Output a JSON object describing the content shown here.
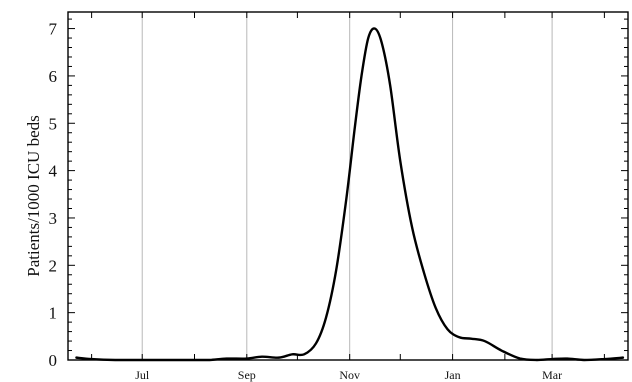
{
  "chart_data": {
    "type": "line",
    "title": "",
    "xlabel": "",
    "ylabel": "Patients/1000 ICU beds",
    "ylim": [
      0,
      7.35
    ],
    "xlim": [
      "2020-05-18",
      "2021-04-15"
    ],
    "yticks": [
      0,
      1,
      2,
      3,
      4,
      5,
      6,
      7
    ],
    "xticks": [
      {
        "label": "Jul",
        "date": "2020-07-01"
      },
      {
        "label": "Sep",
        "date": "2020-09-01"
      },
      {
        "label": "Nov",
        "date": "2020-11-01"
      },
      {
        "label": "Jan",
        "date": "2021-01-01"
      },
      {
        "label": "Mar",
        "date": "2021-03-01"
      }
    ],
    "grid": "vertical at month ticks",
    "legend": "none",
    "series": [
      {
        "color": "#000000",
        "x": [
          "2020-05-23",
          "2020-06-01",
          "2020-06-15",
          "2020-07-01",
          "2020-07-15",
          "2020-08-01",
          "2020-08-10",
          "2020-08-20",
          "2020-09-01",
          "2020-09-10",
          "2020-09-20",
          "2020-09-28",
          "2020-10-05",
          "2020-10-12",
          "2020-10-18",
          "2020-10-24",
          "2020-10-30",
          "2020-11-04",
          "2020-11-08",
          "2020-11-12",
          "2020-11-16",
          "2020-11-20",
          "2020-11-25",
          "2020-12-01",
          "2020-12-08",
          "2020-12-15",
          "2020-12-22",
          "2020-12-29",
          "2021-01-05",
          "2021-01-12",
          "2021-01-20",
          "2021-01-30",
          "2021-02-10",
          "2021-02-20",
          "2021-03-01",
          "2021-03-10",
          "2021-03-20",
          "2021-04-01",
          "2021-04-12"
        ],
        "y": [
          0.05,
          0.02,
          0.0,
          0.0,
          0.0,
          0.0,
          0.0,
          0.03,
          0.03,
          0.07,
          0.05,
          0.12,
          0.12,
          0.35,
          0.9,
          1.9,
          3.4,
          4.9,
          6.0,
          6.8,
          7.0,
          6.7,
          5.8,
          4.2,
          2.8,
          1.85,
          1.1,
          0.65,
          0.48,
          0.45,
          0.4,
          0.2,
          0.03,
          0.0,
          0.02,
          0.03,
          0.0,
          0.02,
          0.05
        ]
      }
    ]
  }
}
